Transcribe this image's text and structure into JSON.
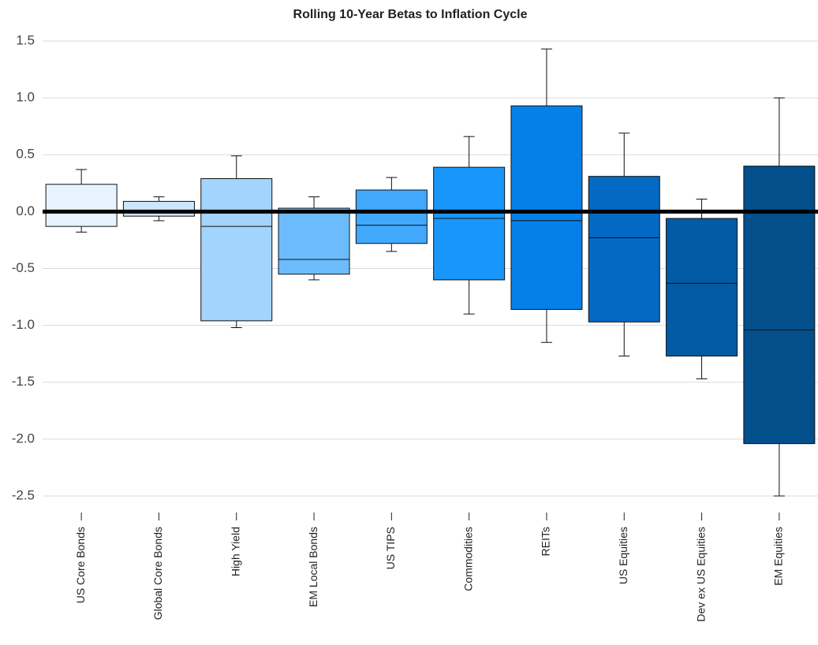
{
  "chart_data": {
    "type": "box",
    "title": "Rolling 10-Year Betas to Inflation Cycle",
    "categories": [
      "US Core Bonds",
      "Global Core Bonds",
      "High Yield",
      "EM Local Bonds",
      "US TIPS",
      "Commodities",
      "REITs",
      "US Equities",
      "Dev ex US Equities",
      "EM Equities"
    ],
    "max": [
      0.37,
      0.13,
      0.49,
      0.13,
      0.3,
      0.66,
      1.43,
      0.69,
      0.11,
      1.0
    ],
    "q3": [
      0.24,
      0.09,
      0.29,
      0.03,
      0.19,
      0.39,
      0.93,
      0.31,
      -0.06,
      0.4
    ],
    "median": [
      -0.01,
      0.0,
      -0.13,
      -0.42,
      -0.12,
      -0.06,
      -0.08,
      -0.23,
      -0.63,
      -1.04
    ],
    "q1": [
      -0.13,
      -0.04,
      -0.96,
      -0.55,
      -0.28,
      -0.6,
      -0.86,
      -0.97,
      -1.27,
      -2.04
    ],
    "min": [
      -0.18,
      -0.08,
      -1.02,
      -0.6,
      -0.35,
      -0.9,
      -1.15,
      -1.27,
      -1.47,
      -2.5
    ],
    "colors": [
      "#e6f3fe",
      "#cce7fd",
      "#a3d4fd",
      "#6cbcfd",
      "#42a8fc",
      "#1996fb",
      "#0580e8",
      "#0469c2",
      "#035aa5",
      "#024f8c"
    ],
    "ylim": [
      -2.5,
      1.5
    ],
    "yticks": [
      1.5,
      {
        "value": 1,
        "label": "1.0"
      },
      0.5,
      {
        "value": 0,
        "label": "0.0"
      },
      -0.5,
      {
        "value": -1,
        "label": "-1.0"
      },
      -1.5,
      {
        "value": -2,
        "label": "-2.0"
      },
      -2.5
    ],
    "grid": true,
    "hline": 0
  }
}
